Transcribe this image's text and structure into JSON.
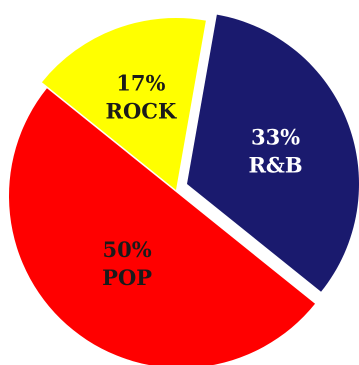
{
  "chart_data": {
    "type": "pie",
    "exploded": true,
    "slices": [
      {
        "category": "R&B",
        "value": 33,
        "value_label": "33%",
        "color": "#1a1a6e",
        "label_color": "#ffffff"
      },
      {
        "category": "POP",
        "value": 50,
        "value_label": "50%",
        "color": "#ff0000",
        "label_color": "#1a1a1a"
      },
      {
        "category": "ROCK",
        "value": 17,
        "value_label": "17%",
        "color": "#ffff00",
        "label_color": "#1a1a1a"
      }
    ]
  }
}
